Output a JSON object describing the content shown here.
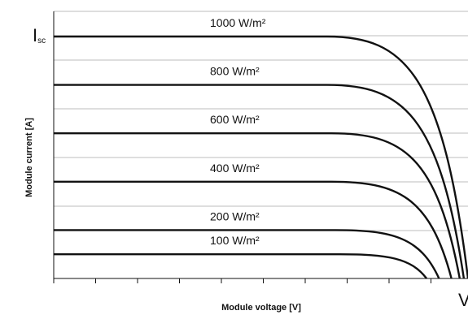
{
  "chart_data": {
    "type": "line",
    "title": "",
    "xlabel": "Module voltage [V]",
    "ylabel": "Module current [A]",
    "grid": true,
    "isc_label": {
      "main": "I",
      "sub": "sc"
    },
    "voc_label": "V",
    "series": [
      {
        "name": "1000 W/m²",
        "current": 1.0,
        "knee": 0.66,
        "voc": 1.0
      },
      {
        "name": "800 W/m²",
        "current": 0.8,
        "knee": 0.66,
        "voc": 0.99
      },
      {
        "name": "600 W/m²",
        "current": 0.6,
        "knee": 0.67,
        "voc": 0.98
      },
      {
        "name": "400 W/m²",
        "current": 0.4,
        "knee": 0.67,
        "voc": 0.96
      },
      {
        "name": "200 W/m²",
        "current": 0.2,
        "knee": 0.68,
        "voc": 0.93
      },
      {
        "name": "100 W/m²",
        "current": 0.1,
        "knee": 0.69,
        "voc": 0.9
      }
    ]
  }
}
